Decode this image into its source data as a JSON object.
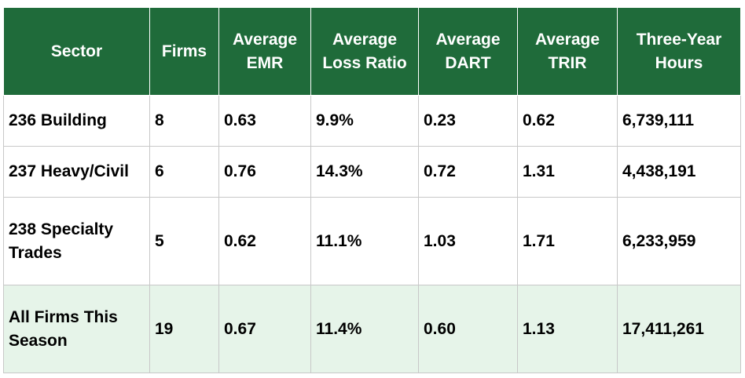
{
  "chart_data": {
    "type": "table",
    "columns": [
      "Sector",
      "Firms",
      "Average EMR",
      "Average Loss Ratio",
      "Average DART",
      "Average TRIR",
      "Three-Year Hours"
    ],
    "header_lines": [
      [
        "Sector"
      ],
      [
        "Firms"
      ],
      [
        "Average",
        "EMR"
      ],
      [
        "Average",
        "Loss Ratio"
      ],
      [
        "Average",
        "DART"
      ],
      [
        "Average",
        "TRIR"
      ],
      [
        "Three-Year",
        "Hours"
      ]
    ],
    "rows": [
      [
        [
          "236 Building"
        ],
        [
          "8"
        ],
        [
          "0.63"
        ],
        [
          "9.9%"
        ],
        [
          "0.23"
        ],
        [
          "0.62"
        ],
        [
          "6,739,111"
        ]
      ],
      [
        [
          "237 Heavy/Civil"
        ],
        [
          "6"
        ],
        [
          "0.76"
        ],
        [
          "14.3%"
        ],
        [
          "0.72"
        ],
        [
          "1.31"
        ],
        [
          "4,438,191"
        ]
      ],
      [
        [
          "238 Specialty",
          "Trades"
        ],
        [
          "5"
        ],
        [
          "0.62"
        ],
        [
          "11.1%"
        ],
        [
          "1.03"
        ],
        [
          "1.71"
        ],
        [
          "6,233,959"
        ]
      ],
      [
        [
          "All Firms This",
          "Season"
        ],
        [
          "19"
        ],
        [
          "0.67"
        ],
        [
          "11.4%"
        ],
        [
          "0.60"
        ],
        [
          "1.13"
        ],
        [
          "17,411,261"
        ]
      ]
    ],
    "colors": {
      "header_bg": "#1f6b3a",
      "header_text": "#ffffff",
      "total_row_bg": "#e6f4e9",
      "border": "#c8c8c8"
    }
  }
}
